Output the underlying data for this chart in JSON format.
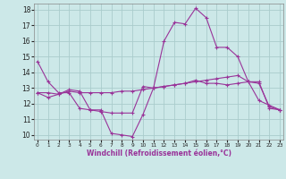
{
  "xlabel": "Windchill (Refroidissement éolien,°C)",
  "background_color": "#cce8e8",
  "grid_color": "#aacccc",
  "line_color": "#993399",
  "hours": [
    0,
    1,
    2,
    3,
    4,
    5,
    6,
    7,
    8,
    9,
    10,
    11,
    12,
    13,
    14,
    15,
    16,
    17,
    18,
    19,
    20,
    21,
    22,
    23
  ],
  "line1": [
    14.7,
    13.4,
    12.7,
    12.7,
    11.7,
    11.6,
    11.6,
    10.1,
    10.0,
    9.9,
    11.3,
    13.0,
    16.0,
    17.2,
    17.1,
    18.1,
    17.5,
    15.6,
    15.6,
    15.0,
    13.4,
    12.2,
    11.9,
    11.6
  ],
  "line2": [
    12.7,
    12.7,
    12.6,
    12.8,
    12.7,
    12.7,
    12.7,
    12.7,
    12.8,
    12.8,
    12.9,
    13.0,
    13.1,
    13.2,
    13.3,
    13.4,
    13.5,
    13.6,
    13.7,
    13.8,
    13.4,
    13.4,
    11.7,
    11.6
  ],
  "line3": [
    12.7,
    12.4,
    12.6,
    12.9,
    12.8,
    11.6,
    11.5,
    11.4,
    11.4,
    11.4,
    13.1,
    13.0,
    13.1,
    13.2,
    13.3,
    13.5,
    13.3,
    13.3,
    13.2,
    13.3,
    13.4,
    13.3,
    11.8,
    11.6
  ],
  "yticks": [
    10,
    11,
    12,
    13,
    14,
    15,
    16,
    17,
    18
  ],
  "xticks": [
    0,
    1,
    2,
    3,
    4,
    5,
    6,
    7,
    8,
    9,
    10,
    11,
    12,
    13,
    14,
    15,
    16,
    17,
    18,
    19,
    20,
    21,
    22,
    23
  ]
}
